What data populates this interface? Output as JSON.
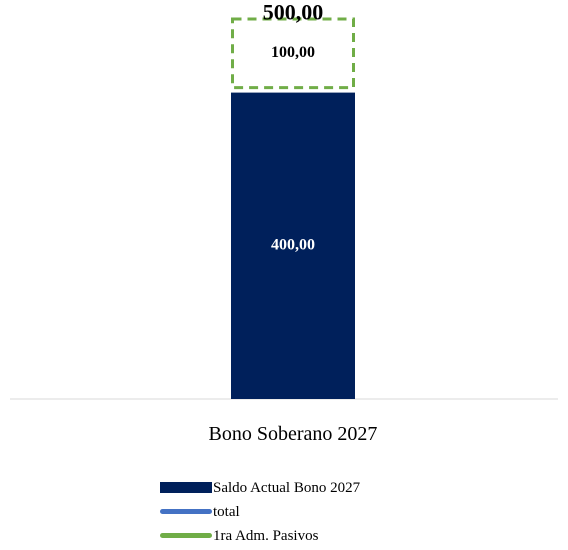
{
  "chart_data": {
    "type": "bar",
    "categories": [
      "Bono Soberano 2027"
    ],
    "series": [
      {
        "name": "Saldo Actual Bono 2027",
        "values": [
          400
        ],
        "label": "400,00",
        "color": "#00205b",
        "style": "solid-fill"
      },
      {
        "name": "1ra Adm. Pasivos",
        "values": [
          100
        ],
        "label": "100,00",
        "color": "#70ad47",
        "style": "dashed-outline"
      },
      {
        "name": "total",
        "values": [
          500
        ],
        "label": "500,00",
        "color": "#2e75b6",
        "style": "solid-outline"
      }
    ],
    "stack_order": [
      "Saldo Actual Bono 2027",
      "1ra Adm. Pasivos",
      "total"
    ],
    "ylim": [
      0,
      600
    ],
    "grid": false,
    "legend_position": "bottom",
    "title": "",
    "xlabel": "",
    "ylabel": ""
  },
  "legend": [
    {
      "label": "Saldo Actual Bono 2027",
      "swatch": "rect",
      "color": "#00205b"
    },
    {
      "label": "total",
      "swatch": "line",
      "color": "#4472c4"
    },
    {
      "label": "1ra Adm. Pasivos",
      "swatch": "line",
      "color": "#70ad47"
    }
  ]
}
